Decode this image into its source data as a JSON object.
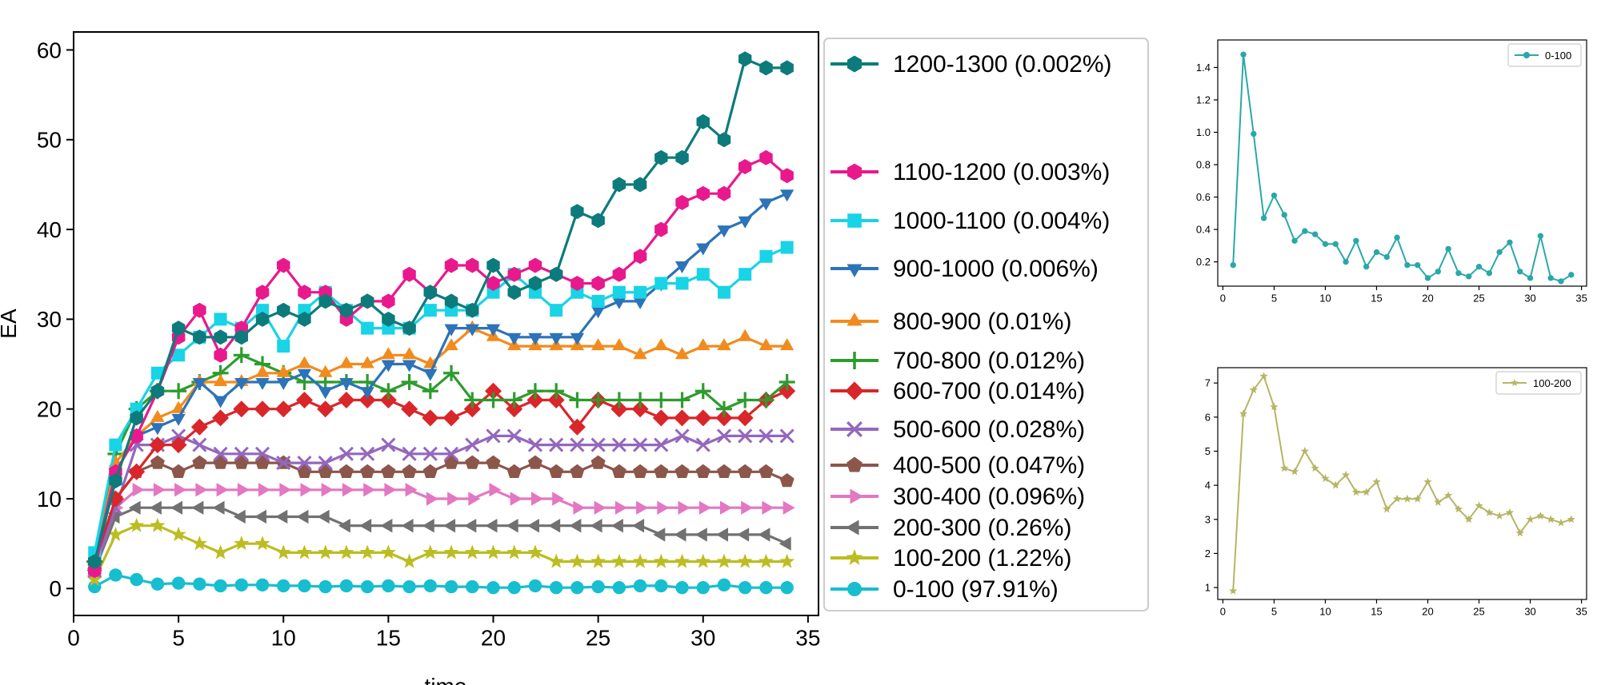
{
  "chart_data": [
    {
      "type": "line",
      "xlabel": "time",
      "ylabel": "EA",
      "xlim": [
        0,
        35.5
      ],
      "ylim": [
        -3,
        62
      ],
      "xticks": [
        0,
        5,
        10,
        15,
        20,
        25,
        30,
        35
      ],
      "yticks": [
        0,
        10,
        20,
        30,
        40,
        50,
        60
      ],
      "legend_position": "right-outside",
      "x": [
        1,
        2,
        3,
        4,
        5,
        6,
        7,
        8,
        9,
        10,
        11,
        12,
        13,
        14,
        15,
        16,
        17,
        18,
        19,
        20,
        21,
        22,
        23,
        24,
        25,
        26,
        27,
        28,
        29,
        30,
        31,
        32,
        33,
        34
      ],
      "series": [
        {
          "name": "1200-1300 (0.002%)",
          "color": "#0d7b7b",
          "marker": "hexagon",
          "values": [
            3,
            12,
            19,
            22,
            29,
            28,
            28,
            28,
            30,
            31,
            30,
            32,
            31,
            32,
            30,
            29,
            33,
            32,
            31,
            36,
            33,
            34,
            35,
            42,
            41,
            45,
            45,
            48,
            48,
            52,
            50,
            59,
            58,
            58
          ]
        },
        {
          "name": "1100-1200 (0.003%)",
          "color": "#e8198d",
          "marker": "hexagon",
          "values": [
            2,
            13,
            17,
            22,
            28,
            31,
            26,
            29,
            33,
            36,
            33,
            33,
            30,
            32,
            32,
            35,
            33,
            36,
            36,
            34,
            35,
            36,
            35,
            34,
            34,
            35,
            37,
            40,
            43,
            44,
            44,
            47,
            48,
            46
          ]
        },
        {
          "name": "1000-1100 (0.004%)",
          "color": "#19d3e6",
          "marker": "square",
          "values": [
            4,
            16,
            20,
            24,
            26,
            28,
            30,
            29,
            31,
            27,
            31,
            33,
            31,
            29,
            29,
            29,
            31,
            31,
            31,
            33,
            35,
            33,
            31,
            33,
            32,
            33,
            33,
            34,
            34,
            35,
            33,
            35,
            37,
            38
          ]
        },
        {
          "name": "900-1000 (0.006%)",
          "color": "#2c73b8",
          "marker": "triangle-down",
          "values": [
            3,
            13,
            17,
            18,
            19,
            23,
            21,
            23,
            23,
            23,
            24,
            22,
            23,
            22,
            25,
            25,
            24,
            29,
            29,
            29,
            28,
            28,
            28,
            28,
            31,
            32,
            32,
            34,
            36,
            38,
            40,
            41,
            43,
            44
          ]
        },
        {
          "name": "800-900 (0.01%)",
          "color": "#f28b1d",
          "marker": "triangle-up",
          "values": [
            3,
            14,
            17,
            19,
            20,
            23,
            23,
            23,
            24,
            24,
            25,
            24,
            25,
            25,
            26,
            26,
            25,
            27,
            29,
            28,
            27,
            27,
            27,
            27,
            27,
            27,
            26,
            27,
            26,
            27,
            27,
            28,
            27,
            27
          ]
        },
        {
          "name": "700-800 (0.012%)",
          "color": "#2e9b2e",
          "marker": "plus",
          "values": [
            3,
            15,
            20,
            22,
            22,
            23,
            24,
            26,
            25,
            24,
            23,
            23,
            23,
            23,
            22,
            23,
            22,
            24,
            21,
            21,
            21,
            22,
            22,
            21,
            21,
            21,
            21,
            21,
            21,
            22,
            20,
            21,
            21,
            23
          ]
        },
        {
          "name": "600-700 (0.014%)",
          "color": "#d9262a",
          "marker": "diamond",
          "values": [
            3,
            10,
            13,
            16,
            16,
            18,
            19,
            20,
            20,
            20,
            21,
            20,
            21,
            21,
            21,
            20,
            19,
            19,
            20,
            22,
            20,
            21,
            21,
            18,
            21,
            20,
            20,
            19,
            19,
            19,
            19,
            19,
            21,
            22
          ]
        },
        {
          "name": "500-600 (0.028%)",
          "color": "#9467bd",
          "marker": "x",
          "values": [
            2,
            9,
            16,
            16,
            17,
            16,
            15,
            15,
            15,
            14,
            14,
            14,
            15,
            15,
            16,
            15,
            15,
            15,
            16,
            17,
            17,
            16,
            16,
            16,
            16,
            16,
            16,
            16,
            17,
            16,
            17,
            17,
            17,
            17
          ]
        },
        {
          "name": "400-500 (0.047%)",
          "color": "#8c564b",
          "marker": "pentagon",
          "values": [
            2,
            10,
            13,
            14,
            13,
            14,
            14,
            14,
            14,
            14,
            13,
            13,
            13,
            13,
            13,
            13,
            13,
            14,
            14,
            14,
            13,
            14,
            13,
            13,
            14,
            13,
            13,
            13,
            13,
            13,
            13,
            13,
            13,
            12
          ]
        },
        {
          "name": "300-400 (0.096%)",
          "color": "#e377c2",
          "marker": "triangle-right",
          "values": [
            2,
            9,
            11,
            11,
            11,
            11,
            11,
            11,
            11,
            11,
            11,
            11,
            11,
            11,
            11,
            11,
            10,
            10,
            10,
            11,
            10,
            10,
            10,
            9,
            9,
            9,
            9,
            9,
            9,
            9,
            9,
            9,
            9,
            9
          ]
        },
        {
          "name": "200-300 (0.26%)",
          "color": "#717171",
          "marker": "triangle-left",
          "values": [
            2,
            8,
            9,
            9,
            9,
            9,
            9,
            8,
            8,
            8,
            8,
            8,
            7,
            7,
            7,
            7,
            7,
            7,
            7,
            7,
            7,
            7,
            7,
            7,
            7,
            7,
            7,
            6,
            6,
            6,
            6,
            6,
            6,
            5
          ]
        },
        {
          "name": "100-200 (1.22%)",
          "color": "#bcbd22",
          "marker": "star",
          "values": [
            1,
            6,
            7,
            7,
            6,
            5,
            4,
            5,
            5,
            4,
            4,
            4,
            4,
            4,
            4,
            3,
            4,
            4,
            4,
            4,
            4,
            4,
            3,
            3,
            3,
            3,
            3,
            3,
            3,
            3,
            3,
            3,
            3,
            3
          ]
        },
        {
          "name": "0-100 (97.91%)",
          "color": "#17becf",
          "marker": "circle",
          "values": [
            0.2,
            1.5,
            1.0,
            0.5,
            0.6,
            0.5,
            0.3,
            0.4,
            0.4,
            0.3,
            0.3,
            0.2,
            0.3,
            0.2,
            0.3,
            0.2,
            0.3,
            0.2,
            0.2,
            0.1,
            0.1,
            0.3,
            0.1,
            0.1,
            0.2,
            0.1,
            0.3,
            0.3,
            0.1,
            0.1,
            0.4,
            0.1,
            0.1,
            0.1
          ]
        }
      ]
    },
    {
      "type": "line",
      "xlim": [
        -0.5,
        35.5
      ],
      "ylim": [
        0.05,
        1.57
      ],
      "xticks": [
        0,
        5,
        10,
        15,
        20,
        25,
        30,
        35
      ],
      "yticks": [
        0.2,
        0.4,
        0.6,
        0.8,
        1.0,
        1.2,
        1.4
      ],
      "legend_position": "top-right",
      "x": [
        1,
        2,
        3,
        4,
        5,
        6,
        7,
        8,
        9,
        10,
        11,
        12,
        13,
        14,
        15,
        16,
        17,
        18,
        19,
        20,
        21,
        22,
        23,
        24,
        25,
        26,
        27,
        28,
        29,
        30,
        31,
        32,
        33,
        34
      ],
      "series": [
        {
          "name": "0-100",
          "color": "#2aa8a8",
          "marker": "circle",
          "values": [
            0.18,
            1.48,
            0.99,
            0.47,
            0.61,
            0.49,
            0.33,
            0.39,
            0.37,
            0.31,
            0.31,
            0.2,
            0.33,
            0.17,
            0.26,
            0.23,
            0.35,
            0.18,
            0.18,
            0.1,
            0.14,
            0.28,
            0.13,
            0.11,
            0.17,
            0.13,
            0.26,
            0.32,
            0.14,
            0.1,
            0.36,
            0.1,
            0.08,
            0.12
          ]
        }
      ]
    },
    {
      "type": "line",
      "xlim": [
        -0.5,
        35.5
      ],
      "ylim": [
        0.65,
        7.45
      ],
      "xticks": [
        0,
        5,
        10,
        15,
        20,
        25,
        30,
        35
      ],
      "yticks": [
        1,
        2,
        3,
        4,
        5,
        6,
        7
      ],
      "legend_position": "top-right",
      "x": [
        1,
        2,
        3,
        4,
        5,
        6,
        7,
        8,
        9,
        10,
        11,
        12,
        13,
        14,
        15,
        16,
        17,
        18,
        19,
        20,
        21,
        22,
        23,
        24,
        25,
        26,
        27,
        28,
        29,
        30,
        31,
        32,
        33,
        34
      ],
      "series": [
        {
          "name": "100-200",
          "color": "#b5b565",
          "marker": "star",
          "values": [
            0.9,
            6.1,
            6.8,
            7.2,
            6.3,
            4.5,
            4.4,
            5.0,
            4.5,
            4.2,
            4.0,
            4.3,
            3.8,
            3.8,
            4.1,
            3.3,
            3.6,
            3.6,
            3.6,
            4.1,
            3.5,
            3.7,
            3.3,
            3.0,
            3.4,
            3.2,
            3.1,
            3.2,
            2.6,
            3.0,
            3.1,
            3.0,
            2.9,
            3.0
          ]
        }
      ]
    }
  ]
}
